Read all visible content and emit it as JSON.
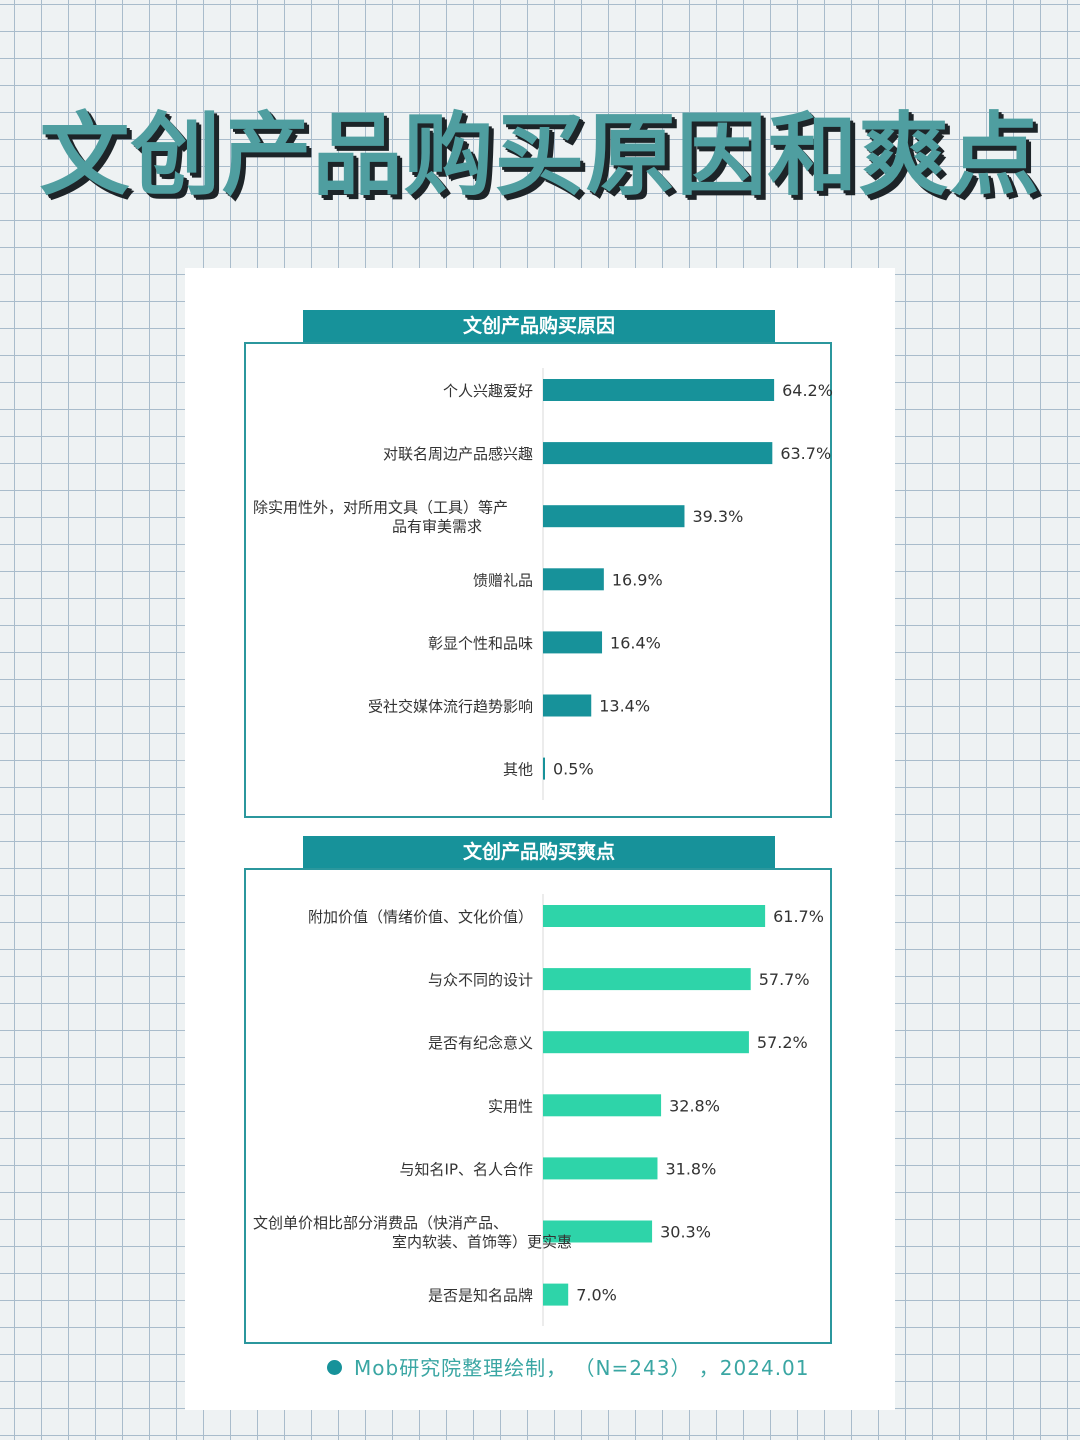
{
  "page": {
    "title": "文创产品购买原因和爽点",
    "footer": "Mob研究院整理绘制， （N=243） ，2024.01"
  },
  "colors": {
    "reasons_bar": "#17929a",
    "highlights_bar": "#2ed4a9",
    "header_bg": "#17929a"
  },
  "chart_data": [
    {
      "type": "bar",
      "orientation": "horizontal",
      "title": "文创产品购买原因",
      "categories": [
        "个人兴趣爱好",
        "对联名周边产品感兴趣",
        "除实用性外，对所用文具（工具）等产品有审美需求",
        "馈赠礼品",
        "彰显个性和品味",
        "受社交媒体流行趋势影响",
        "其他"
      ],
      "category_lines": [
        [
          "个人兴趣爱好"
        ],
        [
          "对联名周边产品感兴趣"
        ],
        [
          "除实用性外，对所用文具（工具）等产",
          "品有审美需求"
        ],
        [
          "馈赠礼品"
        ],
        [
          "彰显个性和品味"
        ],
        [
          "受社交媒体流行趋势影响"
        ],
        [
          "其他"
        ]
      ],
      "values": [
        64.2,
        63.7,
        39.3,
        16.9,
        16.4,
        13.4,
        0.5
      ],
      "labels": [
        "64.2%",
        "63.7%",
        "39.3%",
        "16.9%",
        "16.4%",
        "13.4%",
        "0.5%"
      ],
      "unit": "%"
    },
    {
      "type": "bar",
      "orientation": "horizontal",
      "title": "文创产品购买爽点",
      "categories": [
        "附加价值（情绪价值、文化价值）",
        "与众不同的设计",
        "是否有纪念意义",
        "实用性",
        "与知名IP、名人合作",
        "文创单价相比部分消费品（快消产品、室内软装、首饰等）更实惠",
        "是否是知名品牌"
      ],
      "category_lines": [
        [
          "附加价值（情绪价值、文化价值）"
        ],
        [
          "与众不同的设计"
        ],
        [
          "是否有纪念意义"
        ],
        [
          "实用性"
        ],
        [
          "与知名IP、名人合作"
        ],
        [
          "文创单价相比部分消费品（快消产品、",
          "室内软装、首饰等）更实惠"
        ],
        [
          "是否是知名品牌"
        ]
      ],
      "values": [
        61.7,
        57.7,
        57.2,
        32.8,
        31.8,
        30.3,
        7.0
      ],
      "labels": [
        "61.7%",
        "57.7%",
        "57.2%",
        "32.8%",
        "31.8%",
        "30.3%",
        "7.0%"
      ],
      "unit": "%"
    }
  ]
}
